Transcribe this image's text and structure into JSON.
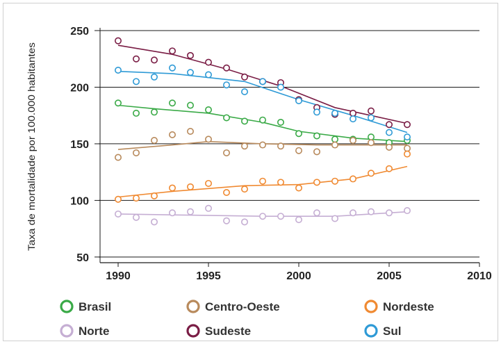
{
  "chart_data": {
    "type": "scatter",
    "ylabel": "Taxa de mortalidade por 100.000 habitantes",
    "xlabel": "",
    "xlim": [
      1989,
      2010
    ],
    "ylim": [
      45,
      250
    ],
    "x_ticks": [
      "1990",
      "1995",
      "2000",
      "2005",
      "2010"
    ],
    "y_ticks": [
      "50",
      "100",
      "150",
      "200",
      "250"
    ],
    "grid": "horizontal",
    "legend_position": "bottom",
    "x": [
      1990,
      1991,
      1992,
      1993,
      1994,
      1995,
      1996,
      1997,
      1998,
      1999,
      2000,
      2001,
      2002,
      2003,
      2004,
      2005,
      2006
    ],
    "series": [
      {
        "name": "Brasil",
        "color": "#3aaa47",
        "points": [
          186,
          177,
          178,
          186,
          184,
          180,
          173,
          170,
          171,
          169,
          159,
          157,
          154,
          154,
          156,
          151,
          153
        ],
        "trend": [
          [
            1990,
            184
          ],
          [
            1992,
            181
          ],
          [
            1995,
            177
          ],
          [
            1998,
            169
          ],
          [
            2000,
            161
          ],
          [
            2003,
            155
          ],
          [
            2006,
            152
          ]
        ]
      },
      {
        "name": "Centro-Oeste",
        "color": "#b88a5c",
        "points": [
          138,
          142,
          153,
          158,
          161,
          154,
          142,
          148,
          149,
          148,
          144,
          143,
          149,
          153,
          151,
          147,
          146
        ],
        "trend": [
          [
            1990,
            145
          ],
          [
            1993,
            149
          ],
          [
            1995,
            152
          ],
          [
            1998,
            150
          ],
          [
            2001,
            149
          ],
          [
            2006,
            149
          ]
        ]
      },
      {
        "name": "Nordeste",
        "color": "#f08a32",
        "points": [
          101,
          102,
          104,
          111,
          112,
          115,
          107,
          110,
          117,
          116,
          111,
          116,
          117,
          119,
          124,
          128,
          141
        ],
        "trend": [
          [
            1990,
            103
          ],
          [
            1993,
            108
          ],
          [
            1997,
            113
          ],
          [
            2000,
            114
          ],
          [
            2003,
            119
          ],
          [
            2006,
            130
          ]
        ]
      },
      {
        "name": "Norte",
        "color": "#c5aed3",
        "points": [
          88,
          85,
          81,
          89,
          90,
          93,
          82,
          81,
          86,
          86,
          83,
          89,
          84,
          89,
          90,
          89,
          91
        ],
        "trend": [
          [
            1990,
            88
          ],
          [
            1994,
            87
          ],
          [
            1998,
            86
          ],
          [
            2002,
            86
          ],
          [
            2006,
            90
          ]
        ]
      },
      {
        "name": "Sudeste",
        "color": "#7a1d45",
        "points": [
          241,
          225,
          224,
          232,
          228,
          222,
          217,
          209,
          205,
          204,
          189,
          182,
          176,
          177,
          179,
          167,
          167
        ],
        "trend": [
          [
            1990,
            237
          ],
          [
            1993,
            229
          ],
          [
            1996,
            216
          ],
          [
            1999,
            201
          ],
          [
            2002,
            182
          ],
          [
            2006,
            168
          ]
        ]
      },
      {
        "name": "Sul",
        "color": "#2e9ad6",
        "points": [
          215,
          205,
          209,
          217,
          213,
          211,
          202,
          196,
          205,
          200,
          188,
          178,
          177,
          172,
          173,
          160,
          156
        ],
        "trend": [
          [
            1990,
            214
          ],
          [
            1993,
            212
          ],
          [
            1997,
            205
          ],
          [
            2000,
            189
          ],
          [
            2003,
            175
          ],
          [
            2006,
            160
          ]
        ]
      }
    ],
    "legend": [
      "Brasil",
      "Centro-Oeste",
      "Nordeste",
      "Norte",
      "Sudeste",
      "Sul"
    ]
  }
}
